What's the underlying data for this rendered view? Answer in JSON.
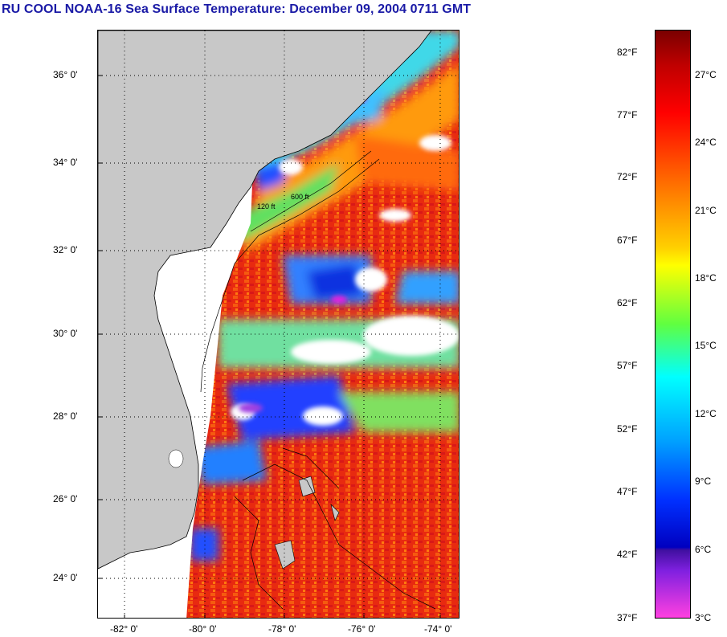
{
  "title": "RU COOL  NOAA-16  Sea Surface Temperature:  December 09, 2004 0711 GMT",
  "map": {
    "lat_labels": [
      "36° 0'",
      "34° 0'",
      "32° 0'",
      "30° 0'",
      "28° 0'",
      "26° 0'",
      "24° 0'"
    ],
    "lon_labels": [
      "-82° 0'",
      "-80° 0'",
      "-78° 0'",
      "-76° 0'",
      "-74° 0'"
    ],
    "contour_labels": [
      "120 ft",
      "600 ft"
    ],
    "colors": {
      "land": "#c8c8c8",
      "cloud": "#ffffff",
      "warm_water": "#f03010",
      "cool_water": "#20c0ff"
    }
  },
  "colorbar": {
    "fahrenheit_labels": [
      "82°F",
      "77°F",
      "72°F",
      "67°F",
      "62°F",
      "57°F",
      "52°F",
      "47°F",
      "42°F",
      "37°F"
    ],
    "celsius_labels": [
      "27°C",
      "24°C",
      "21°C",
      "18°C",
      "15°C",
      "12°C",
      "9°C",
      "6°C",
      "3°C"
    ]
  }
}
